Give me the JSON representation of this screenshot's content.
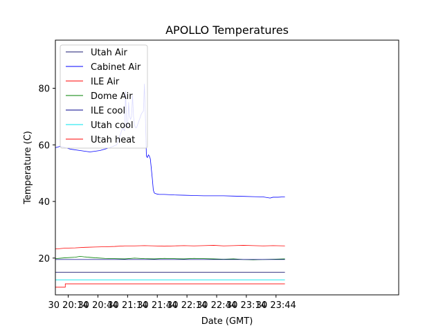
{
  "chart_data": {
    "type": "line",
    "title": "APOLLO Temperatures",
    "xlabel": "Date (GMT)",
    "ylabel": "Temperature (C)",
    "x_unit": "minutes since 30 20:00 GMT",
    "xlim": [
      1,
      348
    ],
    "ylim": [
      7,
      97
    ],
    "grid": false,
    "legend_position": "top-left",
    "x_ticks": [
      {
        "value": 14,
        "label": "30 20:14"
      },
      {
        "value": 44,
        "label": "30 20:44"
      },
      {
        "value": 74,
        "label": "30 21:14"
      },
      {
        "value": 104,
        "label": "30 21:44"
      },
      {
        "value": 134,
        "label": "30 22:14"
      },
      {
        "value": 164,
        "label": "30 22:44"
      },
      {
        "value": 194,
        "label": "30 23:14"
      },
      {
        "value": 224,
        "label": "30 23:44"
      }
    ],
    "y_ticks": [
      {
        "value": 20,
        "label": "20"
      },
      {
        "value": 40,
        "label": "40"
      },
      {
        "value": 60,
        "label": "60"
      },
      {
        "value": 80,
        "label": "80"
      }
    ],
    "series": [
      {
        "name": "Utah Air",
        "color": "#191970",
        "x": [
          1,
          233
        ],
        "y": [
          15,
          15
        ]
      },
      {
        "name": "Cabinet Air",
        "color": "#0000ff",
        "x": [
          1,
          6,
          16,
          26,
          36,
          46,
          56,
          63,
          66,
          69,
          71,
          72,
          73,
          74,
          75,
          76,
          77,
          78,
          79,
          80,
          81,
          82,
          83,
          84,
          86,
          88,
          90,
          91,
          92,
          93,
          94,
          95,
          96,
          97,
          99,
          100,
          101,
          102,
          103,
          104,
          106,
          111,
          121,
          131,
          141,
          151,
          161,
          171,
          181,
          191,
          201,
          211,
          218,
          221,
          226,
          231,
          233
        ],
        "y": [
          59,
          59.5,
          58.5,
          58,
          57.5,
          58,
          59,
          60,
          63,
          66,
          65,
          79,
          67,
          66,
          75,
          70,
          69,
          70,
          77.5,
          70,
          67,
          66,
          66,
          67,
          69,
          71,
          72,
          81.5,
          70,
          56,
          55.5,
          56.5,
          56,
          55,
          48,
          44,
          43,
          42.8,
          42.7,
          42.6,
          42.5,
          42.5,
          42.3,
          42.2,
          42.1,
          42,
          42,
          42,
          41.9,
          41.8,
          41.7,
          41.6,
          41.2,
          41.5,
          41.5,
          41.6,
          41.6
        ]
      },
      {
        "name": "ILE Air",
        "color": "#ff0000",
        "x": [
          1,
          11,
          21,
          31,
          41,
          51,
          61,
          71,
          81,
          91,
          101,
          111,
          121,
          131,
          141,
          151,
          161,
          171,
          181,
          191,
          201,
          211,
          221,
          233
        ],
        "y": [
          23.2,
          23.5,
          23.6,
          23.8,
          23.9,
          24.0,
          24.1,
          24.3,
          24.3,
          24.4,
          24.3,
          24.2,
          24.3,
          24.4,
          24.3,
          24.4,
          24.5,
          24.3,
          24.4,
          24.5,
          24.4,
          24.3,
          24.4,
          24.3
        ]
      },
      {
        "name": "Dome Air",
        "color": "#008000",
        "x": [
          1,
          11,
          21,
          26,
          31,
          41,
          51,
          61,
          71,
          81,
          91,
          101,
          111,
          121,
          131,
          141,
          151,
          161,
          171,
          181,
          191,
          201,
          211,
          221,
          233
        ],
        "y": [
          19.8,
          20.1,
          20.3,
          20.6,
          20.4,
          20.1,
          19.9,
          19.8,
          19.7,
          20.0,
          19.8,
          19.7,
          19.9,
          19.8,
          19.7,
          19.9,
          19.8,
          19.7,
          19.6,
          19.7,
          19.5,
          19.4,
          19.5,
          19.6,
          19.7
        ]
      },
      {
        "name": "ILE cool",
        "color": "#00008b",
        "x": [
          1,
          233
        ],
        "y": [
          19.5,
          19.5
        ]
      },
      {
        "name": "Utah cool",
        "color": "#00e5ee",
        "x": [
          1,
          233
        ],
        "y": [
          12.3,
          12.3
        ]
      },
      {
        "name": "Utah heat",
        "color": "#ff0000",
        "x": [
          1,
          11,
          11,
          233
        ],
        "y": [
          9.7,
          9.7,
          10.9,
          10.9
        ]
      }
    ]
  }
}
